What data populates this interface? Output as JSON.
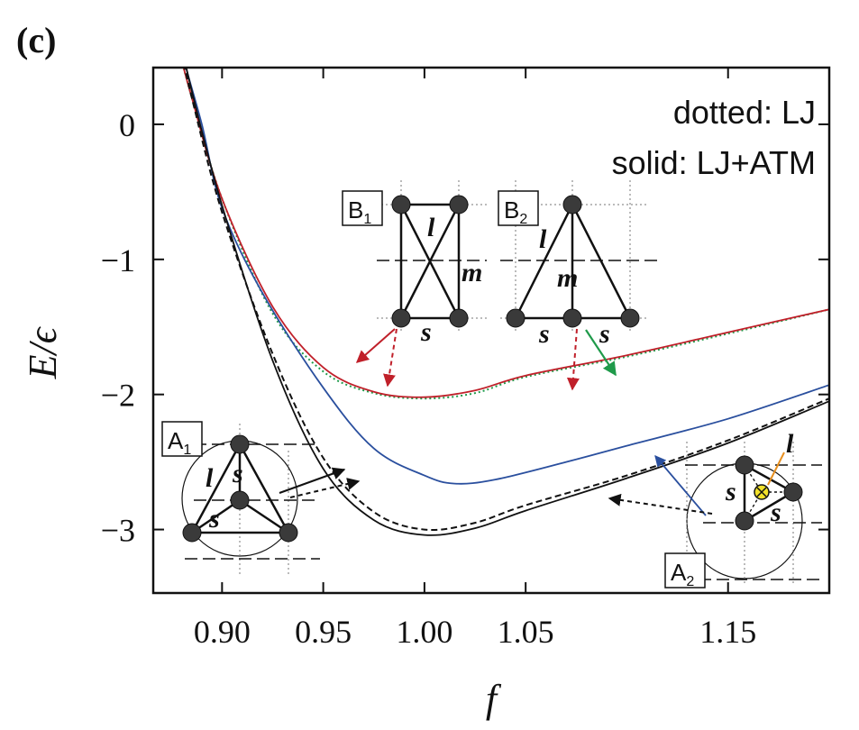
{
  "chart_data": {
    "type": "line",
    "panel_label": "(c)",
    "xlabel": "f",
    "ylabel": "E/ϵ",
    "xlim": [
      0.866,
      1.2
    ],
    "ylim": [
      -3.47,
      0.42
    ],
    "x_scale": "linear",
    "y_scale": "linear",
    "grid": false,
    "xticks": [
      0.9,
      0.95,
      1.0,
      1.05,
      1.15
    ],
    "xtick_labels": [
      "0.90",
      "0.95",
      "1.00",
      "1.05",
      "1.15"
    ],
    "yticks": [
      0,
      -1,
      -2,
      -3
    ],
    "ytick_labels": [
      "0",
      "−1",
      "−2",
      "−3"
    ],
    "legend": {
      "placement": "top-right",
      "line1": "dotted: LJ",
      "line2": "solid: LJ+ATM"
    },
    "series": [
      {
        "style": "dotted",
        "color": "#1f9a4a",
        "x": [
          0.866,
          0.875,
          0.885,
          0.9,
          0.925,
          0.95,
          0.975,
          1.0,
          1.025,
          1.05,
          1.1,
          1.15,
          1.2
        ],
        "y": [
          1.15,
          0.75,
          0.2,
          -0.55,
          -1.4,
          -1.83,
          -1.99,
          -2.03,
          -1.99,
          -1.87,
          -1.72,
          -1.55,
          -1.37
        ]
      },
      {
        "style": "solid",
        "color": "#c0202a",
        "x": [
          0.866,
          0.875,
          0.885,
          0.9,
          0.925,
          0.95,
          0.975,
          1.0,
          1.025,
          1.05,
          1.1,
          1.15,
          1.2
        ],
        "y": [
          1.15,
          0.75,
          0.2,
          -0.55,
          -1.35,
          -1.8,
          -1.98,
          -2.02,
          -1.97,
          -1.86,
          -1.71,
          -1.54,
          -1.37
        ]
      },
      {
        "style": "solid",
        "color": "#2a4f9e",
        "x": [
          0.875,
          0.88,
          0.89,
          0.9,
          0.92,
          0.95,
          0.975,
          1.0,
          1.015,
          1.035,
          1.07,
          1.1,
          1.15,
          1.2
        ],
        "y": [
          1.0,
          0.55,
          0.0,
          -0.62,
          -1.25,
          -1.95,
          -2.4,
          -2.6,
          -2.66,
          -2.63,
          -2.5,
          -2.38,
          -2.18,
          -1.93
        ]
      },
      {
        "style": "dashed",
        "color": "#111111",
        "x": [
          0.866,
          0.875,
          0.885,
          0.9,
          0.925,
          0.95,
          0.975,
          1.0,
          1.025,
          1.05,
          1.1,
          1.15,
          1.2
        ],
        "y": [
          1.3,
          0.85,
          0.2,
          -0.65,
          -1.7,
          -2.47,
          -2.87,
          -3.0,
          -2.95,
          -2.82,
          -2.6,
          -2.34,
          -2.03
        ]
      },
      {
        "style": "solid",
        "color": "#111111",
        "x": [
          0.866,
          0.875,
          0.885,
          0.9,
          0.925,
          0.95,
          0.975,
          1.0,
          1.025,
          1.05,
          1.1,
          1.15,
          1.2
        ],
        "y": [
          1.35,
          0.9,
          0.25,
          -0.6,
          -1.75,
          -2.55,
          -2.93,
          -3.04,
          -2.99,
          -2.86,
          -2.62,
          -2.36,
          -2.05
        ]
      }
    ],
    "insets": {
      "B1": {
        "label": "B",
        "sub": "1",
        "bond_l": "l",
        "bond_m": "m",
        "bond_s": "s"
      },
      "B2": {
        "label": "B",
        "sub": "2",
        "bond_l": "l",
        "bond_m": "m",
        "bond_s1": "s",
        "bond_s2": "s"
      },
      "A1": {
        "label": "A",
        "sub": "1",
        "bond_l": "l",
        "bond_s1": "s",
        "bond_s2": "s"
      },
      "A2": {
        "label": "A",
        "sub": "2",
        "bond_l": "l",
        "bond_s1": "s",
        "bond_s2": "s"
      }
    }
  }
}
